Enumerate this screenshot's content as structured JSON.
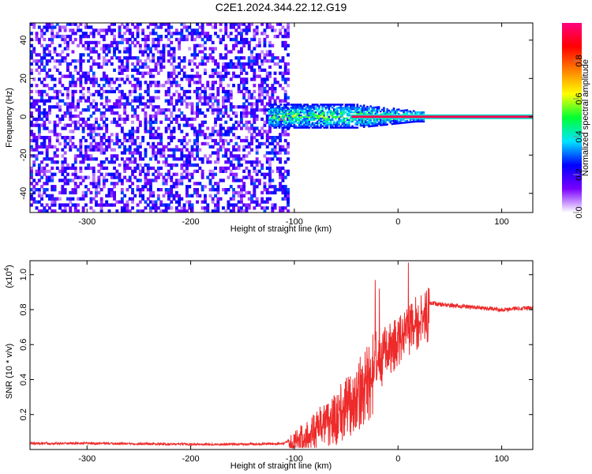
{
  "title": "C2E1.2024.344.22.12.G19",
  "chart_data": [
    {
      "type": "heatmap",
      "xlabel": "Height of straight line (km)",
      "ylabel": "Frequency (Hz)",
      "xlim": [
        -355,
        130
      ],
      "ylim": [
        -50,
        49
      ],
      "xticks": [
        -300,
        -200,
        -100,
        0,
        100
      ],
      "xtick_labels": [
        "-300",
        "-200",
        "-100",
        "0",
        "100"
      ],
      "yticks": [
        -40,
        -20,
        0,
        20,
        40
      ],
      "ytick_labels": [
        "-40",
        "-20",
        "0",
        "20",
        "40"
      ],
      "colorbar": {
        "label": "Normalized spectral amplitude",
        "range": [
          0,
          1
        ],
        "ticks": [
          0,
          0.2,
          0.4,
          0.6,
          0.8
        ],
        "tick_labels": [
          "0.0",
          "0.2",
          "0.4",
          "0.6",
          "0.8"
        ],
        "colors": [
          "#ffffff",
          "#7a00ff",
          "#0000ff",
          "#00e5ff",
          "#00ff33",
          "#ffff00",
          "#ff8000",
          "#ff0000",
          "#ff0080"
        ]
      },
      "features": [
        {
          "name": "noise",
          "x_range": [
            -355,
            -105
          ],
          "y_range": [
            -50,
            49
          ],
          "amplitude": 0.12
        },
        {
          "name": "scintillation",
          "x_range": [
            -125,
            25
          ],
          "y_range": [
            -6,
            5
          ],
          "amplitude": 0.45
        },
        {
          "name": "carrier",
          "x_range": [
            -45,
            130
          ],
          "y": 0,
          "amplitude": 0.95
        }
      ]
    },
    {
      "type": "line",
      "xlabel": "Height of straight line (km)",
      "ylabel": "SNR (10 * v/v)",
      "y_multiplier": "(x10",
      "y_multiplier_exp": "4",
      "y_multiplier_close": ")",
      "xlim": [
        -355,
        130
      ],
      "ylim": [
        0,
        1.08
      ],
      "xticks": [
        -300,
        -200,
        -100,
        0,
        100
      ],
      "xtick_labels": [
        "-300",
        "-200",
        "-100",
        "0",
        "100"
      ],
      "yticks": [
        0.2,
        0.4,
        0.6,
        0.8,
        1.0
      ],
      "ytick_labels": [
        "0.2",
        "0.4",
        "0.6",
        "0.8",
        "1.0"
      ],
      "color": "#ee2a2a",
      "series": [
        {
          "x": [
            -355,
            -300,
            -250,
            -200,
            -150,
            -110,
            -100,
            -90,
            -80,
            -70,
            -60,
            -50,
            -40,
            -30,
            -20,
            -10,
            0,
            10,
            20,
            30,
            40,
            60,
            80,
            100,
            120,
            130
          ],
          "y": [
            0.035,
            0.035,
            0.033,
            0.03,
            0.03,
            0.035,
            0.07,
            0.1,
            0.15,
            0.2,
            0.25,
            0.3,
            0.38,
            0.45,
            0.55,
            0.62,
            0.68,
            0.73,
            0.8,
            0.84,
            0.83,
            0.82,
            0.81,
            0.8,
            0.81,
            0.81
          ]
        }
      ],
      "peaks": [
        {
          "x": -22,
          "y": 0.97
        },
        {
          "x": -18,
          "y": 0.92
        },
        {
          "x": 10,
          "y": 1.07
        },
        {
          "x": 30,
          "y": 0.92
        }
      ]
    }
  ]
}
